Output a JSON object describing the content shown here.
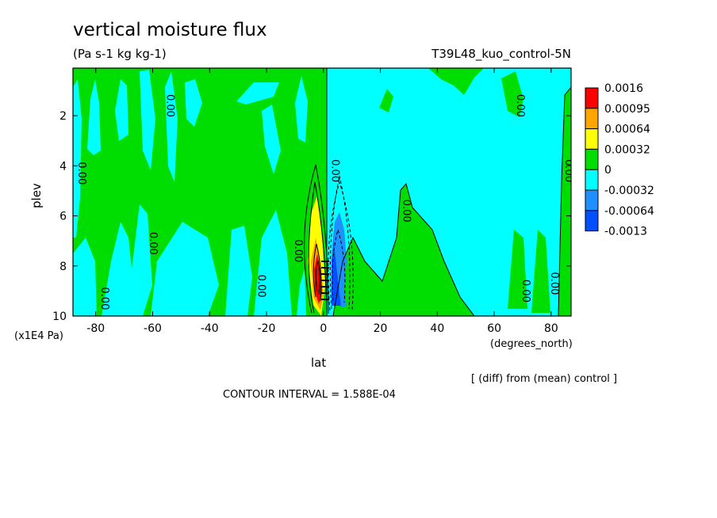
{
  "chart_data": {
    "type": "heatmap",
    "title": "vertical moisture flux",
    "units": "(Pa s-1 kg kg-1)",
    "run_label": "T39L48_kuo_control-5N",
    "xlabel": "lat",
    "xunits": "(degrees_north)",
    "ylabel": "plev",
    "yunits": "(x1E4 Pa)",
    "xlim": [
      -88,
      87
    ],
    "ylim": [
      0.1,
      10
    ],
    "y_inverted": true,
    "x_ticks": [
      "-80",
      "-60",
      "-40",
      "-20",
      "0",
      "20",
      "40",
      "60",
      "80"
    ],
    "x_tick_values": [
      -80,
      -60,
      -40,
      -20,
      0,
      20,
      40,
      60,
      80
    ],
    "y_ticks": [
      "2",
      "4",
      "6",
      "8",
      "10"
    ],
    "y_tick_values": [
      2,
      4,
      6,
      8,
      10
    ],
    "note": "[ (diff) from (mean) control ]",
    "contour_interval_text": "CONTOUR INTERVAL = 1.588E-04",
    "colorbar": {
      "labels": [
        "0.0016",
        "0.00095",
        "0.00064",
        "0.00032",
        "0",
        "-0.00032",
        "-0.00064",
        "-0.0013"
      ],
      "colors": [
        "#ff0000",
        "#ffa500",
        "#ffff00",
        "#00dd00",
        "#00ffff",
        "#1e90ff",
        "#0050ff"
      ]
    },
    "contour_labels": [
      {
        "text": "0.00",
        "lat": -86,
        "p": 4.3
      },
      {
        "text": "0.00",
        "lat": -55,
        "p": 1.6
      },
      {
        "text": "0.00",
        "lat": -61,
        "p": 7.1
      },
      {
        "text": "0.00",
        "lat": -78,
        "p": 9.3
      },
      {
        "text": "0.00",
        "lat": -23,
        "p": 8.8
      },
      {
        "text": "0.00",
        "lat": -10,
        "p": 7.4
      },
      {
        "text": "0.00",
        "lat": 3,
        "p": 4.2
      },
      {
        "text": "0.00",
        "lat": 28,
        "p": 5.8
      },
      {
        "text": "0.00",
        "lat": 68,
        "p": 1.6
      },
      {
        "text": "0.00",
        "lat": 85,
        "p": 4.2
      },
      {
        "text": "0.00",
        "lat": 70,
        "p": 9.0
      },
      {
        "text": "0.00",
        "lat": 80,
        "p": 8.7
      }
    ],
    "anomalies": [
      {
        "lat": -2.5,
        "p": 8.7,
        "value": 0.0016
      },
      {
        "lat": 6.5,
        "p": 8.4,
        "value": -0.0013
      }
    ]
  }
}
